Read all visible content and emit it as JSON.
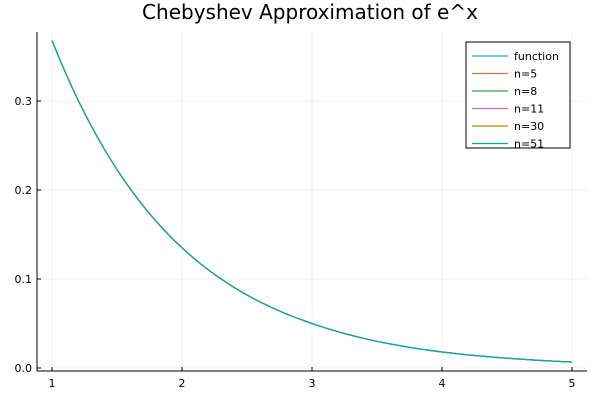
{
  "chart_data": {
    "type": "line",
    "title": "Chebyshev Approximation of e^x",
    "xlabel": "",
    "ylabel": "",
    "xlim": [
      1,
      5
    ],
    "ylim": [
      0,
      0.38
    ],
    "x_ticks": [
      1,
      2,
      3,
      4,
      5
    ],
    "x_tick_labels": [
      "1",
      "2",
      "3",
      "4",
      "5"
    ],
    "y_ticks": [
      0.0,
      0.1,
      0.2,
      0.3
    ],
    "y_tick_labels": [
      "0.0",
      "0.1",
      "0.2",
      "0.3"
    ],
    "grid": true,
    "legend_position": "top-right",
    "x": [
      1.0,
      1.5,
      2.0,
      2.5,
      3.0,
      3.5,
      4.0,
      4.5,
      5.0
    ],
    "series": [
      {
        "name": "function",
        "color": "#2fa7b5",
        "values": [
          0.368,
          0.223,
          0.135,
          0.082,
          0.05,
          0.03,
          0.018,
          0.011,
          0.0067
        ]
      },
      {
        "name": "n=5",
        "color": "#e26f46",
        "values": [
          0.368,
          0.223,
          0.135,
          0.082,
          0.05,
          0.03,
          0.018,
          0.011,
          0.0067
        ]
      },
      {
        "name": "n=8",
        "color": "#3da44d",
        "values": [
          0.368,
          0.223,
          0.135,
          0.082,
          0.05,
          0.03,
          0.018,
          0.011,
          0.0067
        ]
      },
      {
        "name": "n=11",
        "color": "#c271d2",
        "values": [
          0.368,
          0.223,
          0.135,
          0.082,
          0.05,
          0.03,
          0.018,
          0.011,
          0.0067
        ]
      },
      {
        "name": "n=30",
        "color": "#ac8d18",
        "values": [
          0.368,
          0.223,
          0.135,
          0.082,
          0.05,
          0.03,
          0.018,
          0.011,
          0.0067
        ]
      },
      {
        "name": "n=51",
        "color": "#00a9ad",
        "values": [
          0.368,
          0.223,
          0.135,
          0.082,
          0.05,
          0.03,
          0.018,
          0.011,
          0.0067
        ]
      }
    ]
  }
}
